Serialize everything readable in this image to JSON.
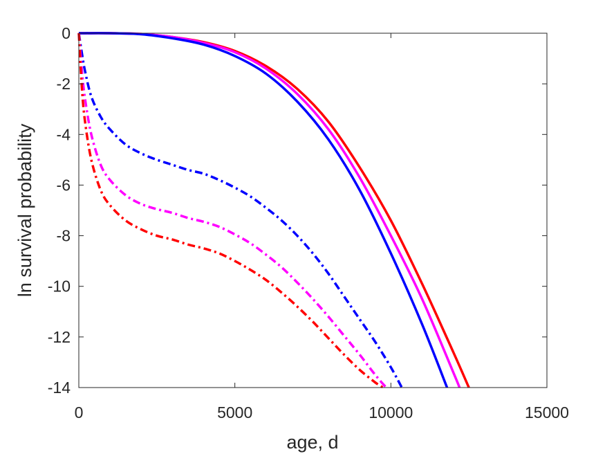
{
  "chart_data": {
    "type": "line",
    "title": "",
    "xlabel": "age, d",
    "ylabel": "ln survival probability",
    "xlim": [
      0,
      15000
    ],
    "ylim": [
      -14,
      0
    ],
    "xticks": [
      0,
      5000,
      10000,
      15000
    ],
    "xtick_labels": [
      "0",
      "5000",
      "10000",
      "15000"
    ],
    "yticks": [
      0,
      -2,
      -4,
      -6,
      -8,
      -10,
      -12,
      -14
    ],
    "ytick_labels": [
      "0",
      "-2",
      "-4",
      "-6",
      "-8",
      "-10",
      "-12",
      "-14"
    ],
    "grid": false,
    "legend": false,
    "series": [
      {
        "color": "#ff0000",
        "style": "solid",
        "x": [
          0,
          1000,
          2000,
          3000,
          4000,
          5000,
          6000,
          7000,
          8000,
          9000,
          10000,
          11000,
          12000,
          12500
        ],
        "y": [
          0,
          0,
          -0.03,
          -0.15,
          -0.35,
          -0.7,
          -1.3,
          -2.2,
          -3.5,
          -5.3,
          -7.4,
          -9.9,
          -12.6,
          -14
        ]
      },
      {
        "color": "#ff00ff",
        "style": "solid",
        "x": [
          0,
          1000,
          2000,
          3000,
          4000,
          5000,
          6000,
          7000,
          8000,
          9000,
          10000,
          11000,
          12000,
          12200
        ],
        "y": [
          0,
          0,
          -0.03,
          -0.15,
          -0.38,
          -0.75,
          -1.4,
          -2.4,
          -3.8,
          -5.7,
          -8.0,
          -10.5,
          -13.4,
          -14
        ]
      },
      {
        "color": "#0000ff",
        "style": "solid",
        "x": [
          0,
          1000,
          2000,
          3000,
          4000,
          5000,
          6000,
          7000,
          8000,
          9000,
          10000,
          11000,
          11800
        ],
        "y": [
          0,
          0,
          -0.04,
          -0.2,
          -0.45,
          -0.9,
          -1.6,
          -2.7,
          -4.2,
          -6.2,
          -8.7,
          -11.5,
          -14
        ]
      },
      {
        "color": "#0000ff",
        "style": "dashdot",
        "x": [
          0,
          100,
          200,
          400,
          700,
          1000,
          1500,
          2000,
          2500,
          3000,
          3500,
          4000,
          4500,
          5000,
          5500,
          6000,
          6500,
          7000,
          7500,
          8000,
          8500,
          9000,
          9500,
          10000,
          10350
        ],
        "y": [
          0,
          -0.8,
          -1.5,
          -2.5,
          -3.3,
          -3.8,
          -4.4,
          -4.75,
          -5.0,
          -5.2,
          -5.4,
          -5.55,
          -5.8,
          -6.1,
          -6.45,
          -6.9,
          -7.4,
          -8.0,
          -8.7,
          -9.5,
          -10.4,
          -11.3,
          -12.2,
          -13.2,
          -14
        ]
      },
      {
        "color": "#ff00ff",
        "style": "dashdot",
        "x": [
          0,
          100,
          200,
          400,
          700,
          1000,
          1500,
          2000,
          2500,
          3000,
          3500,
          4000,
          4500,
          5000,
          5500,
          6000,
          6500,
          7000,
          7500,
          8000,
          8500,
          9000,
          9500,
          9850
        ],
        "y": [
          0,
          -1.5,
          -2.6,
          -4.0,
          -5.2,
          -5.8,
          -6.4,
          -6.75,
          -6.95,
          -7.1,
          -7.3,
          -7.45,
          -7.65,
          -7.95,
          -8.3,
          -8.75,
          -9.25,
          -9.85,
          -10.5,
          -11.2,
          -11.95,
          -12.7,
          -13.5,
          -14
        ]
      },
      {
        "color": "#ff0000",
        "style": "dashdot",
        "x": [
          0,
          100,
          200,
          400,
          700,
          1000,
          1500,
          2000,
          2500,
          3000,
          3500,
          4000,
          4500,
          5000,
          5500,
          6000,
          6500,
          7000,
          7500,
          8000,
          8500,
          9000,
          9500,
          9750
        ],
        "y": [
          0,
          -2.2,
          -3.5,
          -5.0,
          -6.2,
          -6.8,
          -7.4,
          -7.75,
          -8.0,
          -8.15,
          -8.35,
          -8.5,
          -8.7,
          -9.0,
          -9.35,
          -9.75,
          -10.25,
          -10.8,
          -11.4,
          -12.05,
          -12.7,
          -13.3,
          -13.8,
          -14
        ]
      }
    ]
  }
}
